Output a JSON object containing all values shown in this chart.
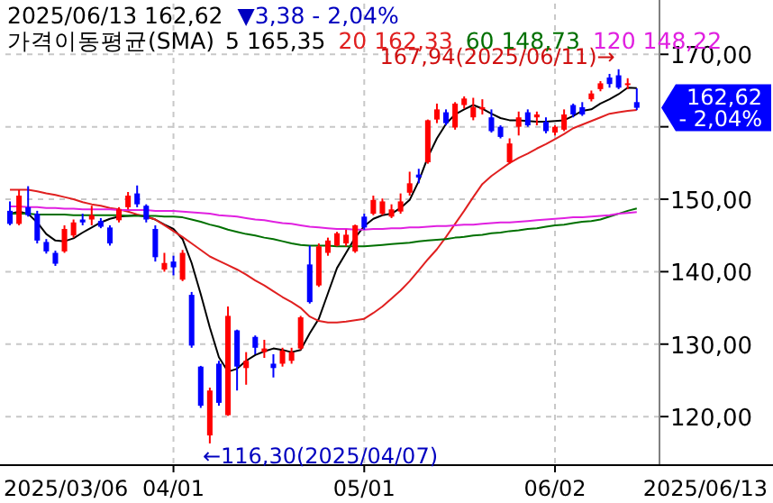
{
  "chart_data": {
    "type": "candlestick",
    "categories": [
      null,
      null,
      null,
      null,
      null,
      null,
      null,
      null,
      null,
      null,
      null,
      null,
      null,
      null,
      null,
      null,
      null,
      null,
      "04/01",
      null,
      null,
      null,
      null,
      null,
      null,
      null,
      null,
      null,
      null,
      null,
      null,
      null,
      null,
      null,
      null,
      null,
      null,
      null,
      null,
      "05/01",
      null,
      null,
      null,
      null,
      null,
      null,
      null,
      null,
      null,
      null,
      null,
      null,
      null,
      null,
      null,
      null,
      null,
      null,
      null,
      null,
      "06/02",
      null,
      null,
      null,
      null,
      null,
      null,
      null,
      null,
      null
    ],
    "ohlc": [
      [
        148.4,
        149.7,
        146.4,
        146.6
      ],
      [
        146.6,
        151.3,
        146.4,
        150.5
      ],
      [
        148.9,
        151.8,
        147.6,
        147.8
      ],
      [
        148.0,
        148.4,
        143.9,
        144.3
      ],
      [
        144.1,
        144.5,
        142.5,
        142.8
      ],
      [
        142.6,
        142.9,
        140.8,
        141.1
      ],
      [
        142.8,
        146.4,
        142.6,
        145.9
      ],
      [
        145.0,
        147.2,
        144.7,
        146.8
      ],
      [
        147.2,
        148.0,
        146.4,
        146.8
      ],
      [
        147.2,
        149.1,
        146.4,
        147.8
      ],
      [
        147.0,
        147.4,
        146.0,
        146.2
      ],
      [
        146.1,
        146.4,
        143.6,
        143.9
      ],
      [
        147.1,
        148.9,
        146.8,
        148.6
      ],
      [
        148.9,
        151.0,
        148.6,
        150.5
      ],
      [
        150.8,
        151.9,
        148.9,
        149.3
      ],
      [
        149.1,
        149.3,
        146.8,
        147.2
      ],
      [
        145.9,
        146.4,
        141.4,
        142.0
      ],
      [
        140.3,
        142.6,
        140.0,
        141.2
      ],
      [
        141.4,
        142.2,
        139.5,
        140.6
      ],
      [
        138.9,
        143.0,
        138.7,
        142.6
      ],
      [
        136.8,
        137.2,
        129.5,
        129.8
      ],
      [
        126.9,
        127.0,
        121.2,
        121.5
      ],
      [
        117.4,
        124.0,
        116.3,
        123.6
      ],
      [
        127.3,
        127.7,
        121.5,
        121.9
      ],
      [
        120.2,
        135.2,
        120.1,
        133.9
      ],
      [
        131.9,
        132.0,
        123.6,
        126.9
      ],
      [
        126.7,
        128.9,
        124.4,
        127.7
      ],
      [
        131.0,
        131.2,
        128.6,
        129.5
      ],
      [
        128.9,
        130.6,
        128.1,
        129.4
      ],
      [
        127.3,
        128.6,
        125.4,
        126.7
      ],
      [
        127.3,
        129.5,
        126.9,
        129.1
      ],
      [
        127.7,
        129.5,
        127.3,
        128.9
      ],
      [
        129.4,
        133.9,
        129.2,
        133.7
      ],
      [
        141.0,
        143.6,
        135.6,
        135.8
      ],
      [
        138.1,
        143.9,
        137.9,
        143.5
      ],
      [
        142.6,
        144.7,
        142.2,
        144.3
      ],
      [
        143.6,
        145.5,
        143.5,
        145.3
      ],
      [
        143.9,
        145.8,
        143.5,
        145.1
      ],
      [
        142.8,
        146.5,
        142.6,
        146.4
      ],
      [
        147.6,
        148.0,
        145.8,
        146.1
      ],
      [
        148.0,
        150.5,
        147.8,
        149.9
      ],
      [
        148.0,
        150.1,
        147.8,
        149.7
      ],
      [
        147.6,
        149.3,
        147.4,
        148.6
      ],
      [
        148.3,
        150.8,
        148.0,
        149.7
      ],
      [
        150.9,
        153.8,
        150.5,
        152.2
      ],
      [
        153.4,
        154.2,
        152.2,
        153.0
      ],
      [
        155.1,
        161.0,
        154.9,
        160.9
      ],
      [
        161.0,
        163.2,
        160.5,
        162.4
      ],
      [
        162.0,
        162.4,
        160.2,
        160.5
      ],
      [
        159.9,
        163.4,
        159.6,
        163.2
      ],
      [
        163.0,
        164.2,
        162.5,
        163.9
      ],
      [
        161.3,
        164.0,
        160.9,
        162.7
      ],
      [
        162.4,
        163.8,
        161.7,
        162.7
      ],
      [
        161.3,
        162.4,
        159.2,
        159.4
      ],
      [
        160.0,
        160.2,
        158.4,
        158.6
      ],
      [
        155.1,
        158.4,
        154.9,
        157.7
      ],
      [
        160.0,
        162.1,
        158.8,
        161.3
      ],
      [
        162.0,
        162.4,
        160.0,
        160.2
      ],
      [
        161.3,
        162.1,
        160.2,
        161.7
      ],
      [
        160.7,
        161.3,
        159.1,
        159.4
      ],
      [
        159.2,
        160.2,
        158.8,
        160.0
      ],
      [
        159.6,
        162.4,
        159.4,
        161.7
      ],
      [
        163.0,
        163.2,
        161.3,
        161.7
      ],
      [
        162.7,
        163.4,
        161.5,
        161.7
      ],
      [
        163.8,
        165.0,
        163.5,
        164.6
      ],
      [
        165.2,
        166.3,
        164.9,
        166.0
      ],
      [
        166.8,
        167.3,
        165.4,
        165.9
      ],
      [
        167.1,
        167.94,
        165.2,
        165.4
      ],
      [
        165.9,
        166.7,
        165.2,
        166.0
      ],
      [
        163.4,
        165.3,
        162.3,
        162.62
      ]
    ],
    "colors": [
      "#0000ff",
      "#ff0000",
      "#0000ff",
      "#0000ff",
      "#0000ff",
      "#0000ff",
      "#ff0000",
      "#ff0000",
      "#0000ff",
      "#ff0000",
      "#0000ff",
      "#0000ff",
      "#ff0000",
      "#ff0000",
      "#0000ff",
      "#0000ff",
      "#0000ff",
      "#ff0000",
      "#0000ff",
      "#ff0000",
      "#0000ff",
      "#0000ff",
      "#ff0000",
      "#0000ff",
      "#ff0000",
      "#0000ff",
      "#ff0000",
      "#0000ff",
      "#ff0000",
      "#0000ff",
      "#ff0000",
      "#ff0000",
      "#ff0000",
      "#0000ff",
      "#ff0000",
      "#ff0000",
      "#ff0000",
      "#ff0000",
      "#ff0000",
      "#0000ff",
      "#ff0000",
      "#ff0000",
      "#ff0000",
      "#ff0000",
      "#ff0000",
      "#0000ff",
      "#ff0000",
      "#ff0000",
      "#0000ff",
      "#ff0000",
      "#ff0000",
      "#ff0000",
      "#ff0000",
      "#0000ff",
      "#0000ff",
      "#ff0000",
      "#ff0000",
      "#0000ff",
      "#ff0000",
      "#0000ff",
      "#ff0000",
      "#ff0000",
      "#0000ff",
      "#0000ff",
      "#ff0000",
      "#ff0000",
      "#0000ff",
      "#0000ff",
      "#ff0000",
      "#0000ff"
    ],
    "series": [
      {
        "type": "line",
        "name": "5 165,35",
        "color": "#000000",
        "values": [
          148.0,
          148.3,
          148.0,
          146.8,
          145.2,
          144.3,
          144.2,
          144.6,
          145.4,
          146.1,
          146.8,
          147.3,
          147.6,
          147.7,
          147.8,
          147.6,
          147.2,
          146.5,
          145.9,
          144.5,
          141.2,
          136.9,
          132.3,
          128.2,
          126.2,
          126.6,
          127.7,
          128.5,
          129.0,
          129.4,
          129.2,
          128.9,
          129.2,
          131.5,
          133.5,
          137.0,
          140.5,
          142.6,
          144.7,
          146.3,
          147.3,
          147.8,
          148.0,
          148.8,
          149.9,
          152.5,
          155.8,
          158.4,
          160.4,
          161.7,
          162.4,
          163.0,
          162.5,
          161.8,
          161.2,
          160.9,
          160.9,
          160.8,
          160.7,
          160.7,
          160.8,
          160.9,
          161.5,
          162.2,
          162.4,
          163.2,
          163.8,
          164.5,
          165.4,
          165.35
        ]
      },
      {
        "type": "line",
        "name": "20 162,33",
        "color": "#e02020",
        "values": [
          151.3,
          151.3,
          151.3,
          151.1,
          150.8,
          150.6,
          150.3,
          150.0,
          149.6,
          149.3,
          149.1,
          148.8,
          148.6,
          148.3,
          147.9,
          147.6,
          147.2,
          146.4,
          145.6,
          144.8,
          143.9,
          143.0,
          142.1,
          141.5,
          140.9,
          140.3,
          139.6,
          138.8,
          138.1,
          137.3,
          136.5,
          135.8,
          135.0,
          133.8,
          133.2,
          133.0,
          133.0,
          133.1,
          133.3,
          133.5,
          134.3,
          135.2,
          136.3,
          137.4,
          138.7,
          140.2,
          141.7,
          143.1,
          144.8,
          146.6,
          148.4,
          150.3,
          152.1,
          153.2,
          154.1,
          155.0,
          155.7,
          156.3,
          157.0,
          157.6,
          158.3,
          159.0,
          159.8,
          160.3,
          160.8,
          161.3,
          161.8,
          162.0,
          162.2,
          162.33
        ]
      },
      {
        "type": "line",
        "name": "60 148,73",
        "color": "#007000",
        "values": [
          148.0,
          148.0,
          148.0,
          147.9,
          147.9,
          147.9,
          147.9,
          147.8,
          147.8,
          147.8,
          147.8,
          147.8,
          147.8,
          147.7,
          147.7,
          147.7,
          147.7,
          147.6,
          147.6,
          147.5,
          147.2,
          146.9,
          146.5,
          146.2,
          145.8,
          145.5,
          145.2,
          145.0,
          144.7,
          144.5,
          144.2,
          143.9,
          143.7,
          143.6,
          143.6,
          143.6,
          143.5,
          143.5,
          143.5,
          143.5,
          143.6,
          143.7,
          143.8,
          143.9,
          144.0,
          144.2,
          144.3,
          144.4,
          144.5,
          144.7,
          144.8,
          145.0,
          145.1,
          145.3,
          145.4,
          145.6,
          145.7,
          145.9,
          146.0,
          146.2,
          146.4,
          146.5,
          146.7,
          146.9,
          147.0,
          147.2,
          147.6,
          148.0,
          148.4,
          148.73
        ]
      },
      {
        "type": "line",
        "name": "120 148,22",
        "color": "#e020e0",
        "values": [
          149.0,
          149.0,
          148.9,
          148.9,
          148.8,
          148.8,
          148.7,
          148.7,
          148.6,
          148.6,
          148.6,
          148.6,
          148.5,
          148.5,
          148.5,
          148.5,
          148.4,
          148.4,
          148.4,
          148.3,
          148.2,
          148.1,
          148.0,
          147.8,
          147.7,
          147.6,
          147.4,
          147.2,
          147.1,
          146.9,
          146.7,
          146.6,
          146.4,
          146.2,
          146.1,
          146.0,
          145.9,
          145.9,
          145.8,
          145.8,
          145.9,
          145.9,
          146.0,
          146.0,
          146.1,
          146.1,
          146.2,
          146.3,
          146.3,
          146.4,
          146.5,
          146.5,
          146.6,
          146.7,
          146.8,
          146.8,
          146.9,
          147.0,
          147.1,
          147.2,
          147.3,
          147.4,
          147.5,
          147.5,
          147.6,
          147.7,
          147.8,
          148.0,
          148.1,
          148.22
        ]
      }
    ],
    "legend_title": "가격이동평균(SMA)",
    "annotations": [
      "2025/06/13  162,62",
      "▼3,38  - 2,04%",
      "167,94(2025/06/11)→",
      "←116,30(2025/04/07)",
      "162,62\n- 2,04%",
      "2025/03/06",
      "2025/06/13"
    ],
    "ylim": [
      113.3,
      177.0
    ],
    "yticks": [
      {
        "value": 120,
        "label": "120,00"
      },
      {
        "value": 130,
        "label": "130,00"
      },
      {
        "value": 140,
        "label": "140,00"
      },
      {
        "value": 150,
        "label": "150,00"
      },
      {
        "value": 160,
        "label": null
      },
      {
        "value": 170,
        "label": "170,00"
      }
    ],
    "grid": true
  }
}
